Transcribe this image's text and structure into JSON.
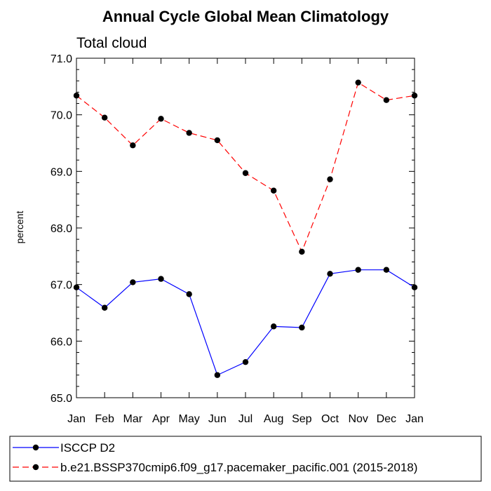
{
  "chart_data": {
    "type": "line",
    "title": "Annual Cycle Global Mean Climatology",
    "subtitle": "Total cloud",
    "xlabel": "",
    "ylabel": "percent",
    "categories": [
      "Jan",
      "Feb",
      "Mar",
      "Apr",
      "May",
      "Jun",
      "Jul",
      "Aug",
      "Sep",
      "Oct",
      "Nov",
      "Dec",
      "Jan"
    ],
    "ylim": [
      65.0,
      71.0
    ],
    "yticks": [
      65.0,
      66.0,
      67.0,
      68.0,
      69.0,
      70.0,
      71.0
    ],
    "ytick_labels": [
      "65.0",
      "66.0",
      "67.0",
      "68.0",
      "69.0",
      "70.0",
      "71.0"
    ],
    "grid": false,
    "legend_position": "bottom",
    "series": [
      {
        "name": "ISCCP D2",
        "color": "#0000ff",
        "dash": "solid",
        "values": [
          66.95,
          66.59,
          67.04,
          67.1,
          66.83,
          65.4,
          65.63,
          66.26,
          66.24,
          67.19,
          67.26,
          67.26,
          66.95
        ]
      },
      {
        "name": "b.e21.BSSP370cmip6.f09_g17.pacemaker_pacific.001 (2015-2018)",
        "color": "#ff0000",
        "dash": "dashed",
        "values": [
          70.34,
          69.95,
          69.46,
          69.93,
          69.68,
          69.55,
          68.97,
          68.66,
          67.58,
          68.86,
          70.57,
          70.26,
          70.34
        ]
      }
    ]
  }
}
